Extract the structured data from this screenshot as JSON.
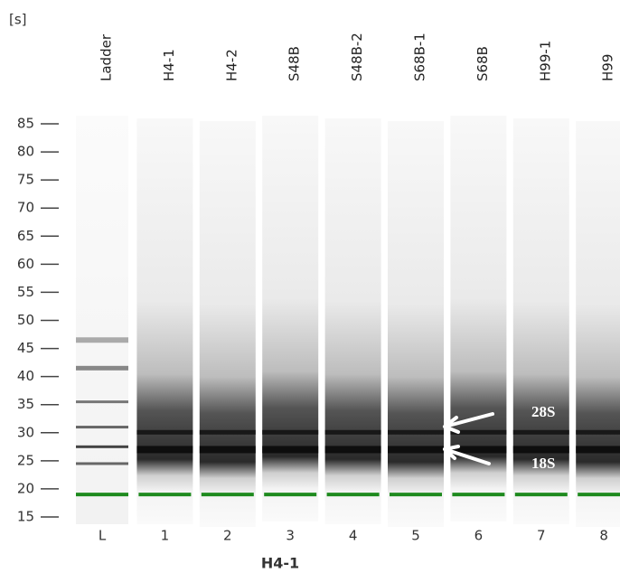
{
  "unit": "[s]",
  "lanes": [
    {
      "name": "Ladder",
      "number": "L"
    },
    {
      "name": "H4-1",
      "number": "1"
    },
    {
      "name": "H4-2",
      "number": "2"
    },
    {
      "name": "S48B",
      "number": "3"
    },
    {
      "name": "S48B-2",
      "number": "4"
    },
    {
      "name": "S68B-1",
      "number": "5"
    },
    {
      "name": "S68B",
      "number": "6"
    },
    {
      "name": "H99-1",
      "number": "7"
    },
    {
      "name": "H99",
      "number": "8"
    }
  ],
  "yticks": [
    85,
    80,
    75,
    70,
    65,
    60,
    55,
    50,
    45,
    40,
    35,
    30,
    25,
    20,
    15
  ],
  "annotations": {
    "upper": "28S",
    "lower": "18S"
  },
  "caption": "H4-1"
}
